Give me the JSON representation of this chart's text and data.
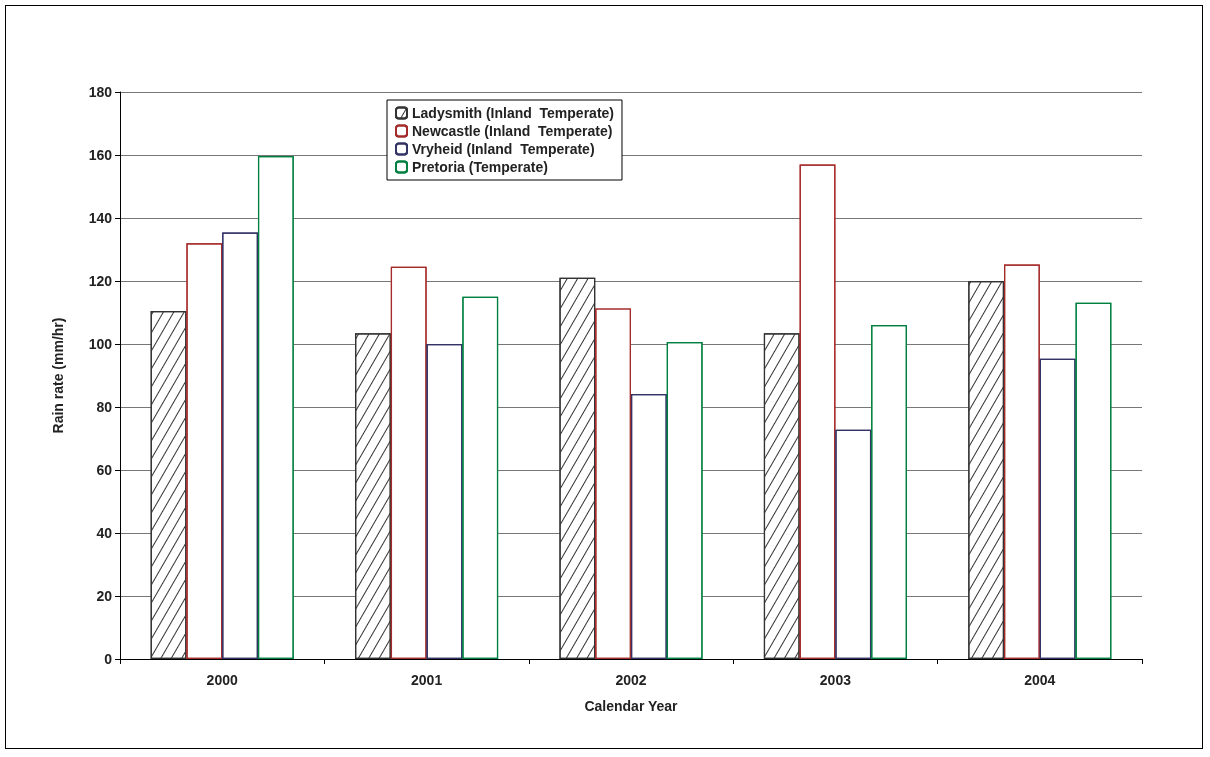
{
  "chart_data": {
    "type": "bar",
    "xlabel": "Calendar Year",
    "ylabel": "Rain rate (mm/hr)",
    "categories": [
      "2000",
      "2001",
      "2002",
      "2003",
      "2004"
    ],
    "series": [
      {
        "name": "Ladysmith (Inland  Temperate)",
        "color": "#333333",
        "values": [
          110.5,
          103.4,
          121,
          103.4,
          120
        ]
      },
      {
        "name": "Newcastle (Inland  Temperate)",
        "color": "#a52a2a",
        "values": [
          132,
          124.5,
          111.3,
          157,
          125.2
        ]
      },
      {
        "name": "Vryheid (Inland  Temperate)",
        "color": "#333366",
        "values": [
          135.4,
          100,
          84.1,
          72.8,
          95.3
        ]
      },
      {
        "name": "Pretoria (Temperate)",
        "color": "#008040",
        "values": [
          159.7,
          115,
          100.6,
          106,
          113.1
        ]
      }
    ],
    "ylim": [
      0,
      180
    ],
    "yticks": [
      0,
      20,
      40,
      60,
      80,
      100,
      120,
      140,
      160,
      180
    ],
    "grid": "y",
    "legend": "top"
  }
}
